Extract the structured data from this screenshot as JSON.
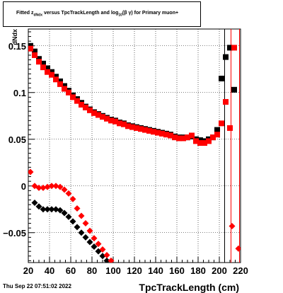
{
  "title": {
    "part1": "Fitted  z",
    "sub1": "dNdx",
    "part2": "  versus TpcTrackLength and log",
    "sub2": "10",
    "part3": "(β γ) for Primary muon+"
  },
  "date": "Thu Sep 22 07:51:02 2022",
  "chart_data": {
    "type": "scatter",
    "xlabel": "TpcTrackLength (cm)",
    "ylabel": "dNdx",
    "xlim": [
      20,
      220
    ],
    "ylim": [
      -0.082,
      0.168
    ],
    "xticks": [
      20,
      40,
      60,
      80,
      100,
      120,
      140,
      160,
      180,
      200,
      220
    ],
    "yticks": [
      -0.05,
      0,
      0.05,
      0.1,
      0.15
    ],
    "ytick_labels": [
      "−0.05",
      "0",
      "0.05",
      "0.1",
      "0.15"
    ],
    "grid": true,
    "series": [
      {
        "marker": "square",
        "color": "#000000",
        "x": [
          22,
          26,
          30,
          34,
          38,
          42,
          46,
          50,
          54,
          58,
          62,
          66,
          70,
          74,
          78,
          82,
          86,
          90,
          94,
          98,
          102,
          106,
          110,
          114,
          118,
          122,
          126,
          130,
          134,
          138,
          142,
          146,
          150,
          154,
          158,
          162,
          166,
          170,
          174,
          178,
          182,
          186,
          190,
          194,
          198,
          202,
          206,
          210,
          214
        ],
        "y": [
          0.15,
          0.144,
          0.136,
          0.131,
          0.126,
          0.122,
          0.117,
          0.112,
          0.107,
          0.102,
          0.097,
          0.093,
          0.089,
          0.085,
          0.082,
          0.079,
          0.077,
          0.075,
          0.073,
          0.071,
          0.07,
          0.068,
          0.067,
          0.065,
          0.064,
          0.063,
          0.062,
          0.061,
          0.06,
          0.059,
          0.058,
          0.057,
          0.056,
          0.055,
          0.053,
          0.052,
          0.052,
          0.052,
          0.053,
          0.05,
          0.049,
          0.048,
          0.05,
          0.052,
          0.06,
          0.115,
          0.138,
          0.148,
          0.103
        ]
      },
      {
        "marker": "square",
        "color": "#ff0000",
        "x": [
          22,
          26,
          30,
          34,
          38,
          42,
          46,
          50,
          54,
          58,
          62,
          66,
          70,
          74,
          78,
          82,
          86,
          90,
          94,
          98,
          102,
          106,
          110,
          114,
          118,
          122,
          126,
          130,
          134,
          138,
          142,
          146,
          150,
          154,
          158,
          162,
          166,
          170,
          174,
          178,
          182,
          186,
          190,
          194,
          198,
          202,
          206,
          210,
          214
        ],
        "y": [
          0.147,
          0.14,
          0.133,
          0.127,
          0.122,
          0.119,
          0.114,
          0.109,
          0.104,
          0.1,
          0.095,
          0.091,
          0.087,
          0.084,
          0.081,
          0.078,
          0.076,
          0.074,
          0.072,
          0.07,
          0.069,
          0.067,
          0.066,
          0.064,
          0.063,
          0.062,
          0.061,
          0.06,
          0.059,
          0.058,
          0.057,
          0.056,
          0.055,
          0.054,
          0.052,
          0.051,
          0.051,
          0.052,
          0.054,
          0.048,
          0.046,
          0.046,
          0.048,
          0.052,
          0.055,
          0.067,
          0.09,
          0.062,
          0.148
        ]
      },
      {
        "marker": "diamond",
        "color": "#000000",
        "x": [
          26,
          30,
          34,
          38,
          42,
          46,
          50,
          54,
          58,
          62,
          66,
          70,
          74,
          78,
          82,
          86,
          90,
          94,
          98
        ],
        "y": [
          -0.018,
          -0.022,
          -0.025,
          -0.025,
          -0.025,
          -0.025,
          -0.026,
          -0.029,
          -0.033,
          -0.038,
          -0.044,
          -0.05,
          -0.055,
          -0.06,
          -0.065,
          -0.07,
          -0.075,
          -0.08,
          -0.084
        ]
      },
      {
        "marker": "diamond",
        "color": "#ff0000",
        "x": [
          22,
          26,
          30,
          34,
          38,
          42,
          46,
          50,
          54,
          58,
          62,
          66,
          70,
          74,
          78,
          82,
          86,
          90,
          94,
          98,
          212,
          218
        ],
        "y": [
          0.015,
          0.0,
          -0.002,
          -0.002,
          -0.001,
          0.0,
          0.0,
          -0.001,
          -0.004,
          -0.008,
          -0.014,
          -0.024,
          -0.032,
          -0.04,
          -0.048,
          -0.056,
          -0.062,
          -0.068,
          -0.074,
          -0.08,
          -0.043,
          -0.067
        ]
      }
    ],
    "error_bars": [
      {
        "x": 205,
        "color": "#000000"
      },
      {
        "x": 211,
        "color": "#ff0000"
      },
      {
        "x": 219,
        "color": "#ff0000"
      }
    ]
  }
}
